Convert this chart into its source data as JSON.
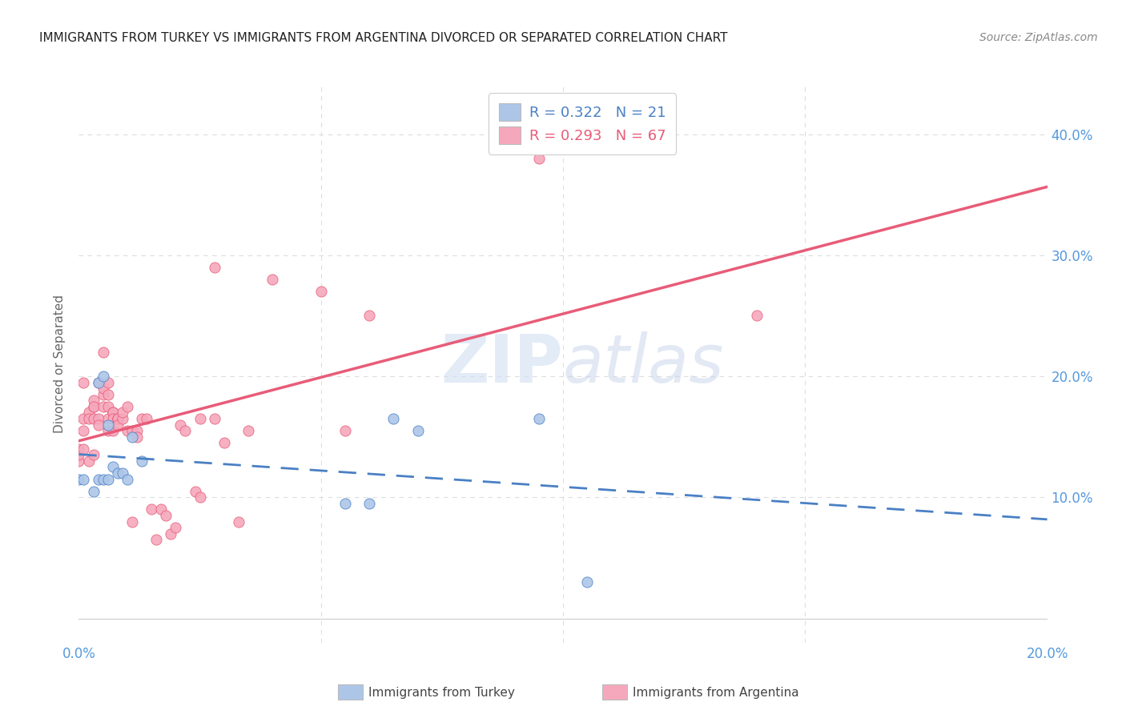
{
  "title": "IMMIGRANTS FROM TURKEY VS IMMIGRANTS FROM ARGENTINA DIVORCED OR SEPARATED CORRELATION CHART",
  "source": "Source: ZipAtlas.com",
  "ylabel": "Divorced or Separated",
  "xlim": [
    0.0,
    0.2
  ],
  "ylim": [
    -0.02,
    0.44
  ],
  "ytick_labels": [
    "10.0%",
    "20.0%",
    "30.0%",
    "40.0%"
  ],
  "yticks": [
    0.1,
    0.2,
    0.3,
    0.4
  ],
  "turkey_color": "#adc6e8",
  "argentina_color": "#f5a8bc",
  "turkey_line_color": "#4a80c4",
  "argentina_line_color": "#e85c78",
  "legend_turkey_R": "R = 0.322",
  "legend_turkey_N": "N = 21",
  "legend_argentina_R": "R = 0.293",
  "legend_argentina_N": "N = 67",
  "turkey_x": [
    0.0,
    0.001,
    0.003,
    0.004,
    0.004,
    0.005,
    0.005,
    0.006,
    0.006,
    0.007,
    0.008,
    0.009,
    0.01,
    0.011,
    0.013,
    0.055,
    0.06,
    0.065,
    0.07,
    0.095,
    0.105
  ],
  "turkey_y": [
    0.115,
    0.115,
    0.105,
    0.115,
    0.195,
    0.115,
    0.2,
    0.115,
    0.16,
    0.125,
    0.12,
    0.12,
    0.115,
    0.15,
    0.13,
    0.095,
    0.095,
    0.165,
    0.155,
    0.165,
    0.03
  ],
  "argentina_x": [
    0.0,
    0.0,
    0.0,
    0.001,
    0.001,
    0.001,
    0.001,
    0.002,
    0.002,
    0.002,
    0.003,
    0.003,
    0.003,
    0.003,
    0.003,
    0.004,
    0.004,
    0.004,
    0.005,
    0.005,
    0.005,
    0.005,
    0.006,
    0.006,
    0.006,
    0.006,
    0.006,
    0.007,
    0.007,
    0.007,
    0.007,
    0.008,
    0.008,
    0.008,
    0.008,
    0.009,
    0.009,
    0.01,
    0.01,
    0.011,
    0.011,
    0.012,
    0.012,
    0.013,
    0.014,
    0.015,
    0.016,
    0.017,
    0.018,
    0.019,
    0.02,
    0.021,
    0.022,
    0.024,
    0.025,
    0.025,
    0.028,
    0.028,
    0.03,
    0.033,
    0.035,
    0.04,
    0.05,
    0.055,
    0.06,
    0.095,
    0.14
  ],
  "argentina_y": [
    0.13,
    0.135,
    0.14,
    0.195,
    0.14,
    0.165,
    0.155,
    0.17,
    0.13,
    0.165,
    0.175,
    0.165,
    0.18,
    0.175,
    0.135,
    0.165,
    0.16,
    0.195,
    0.185,
    0.22,
    0.175,
    0.19,
    0.195,
    0.165,
    0.155,
    0.175,
    0.185,
    0.17,
    0.17,
    0.165,
    0.155,
    0.165,
    0.165,
    0.165,
    0.16,
    0.165,
    0.17,
    0.175,
    0.155,
    0.08,
    0.155,
    0.155,
    0.15,
    0.165,
    0.165,
    0.09,
    0.065,
    0.09,
    0.085,
    0.07,
    0.075,
    0.16,
    0.155,
    0.105,
    0.1,
    0.165,
    0.29,
    0.165,
    0.145,
    0.08,
    0.155,
    0.28,
    0.27,
    0.155,
    0.25,
    0.38,
    0.25
  ],
  "watermark_zip": "ZIP",
  "watermark_atlas": "atlas",
  "background_color": "#ffffff",
  "grid_color": "#dddddd",
  "title_color": "#222222",
  "source_color": "#888888",
  "tick_color": "#5599dd",
  "ylabel_color": "#666666"
}
